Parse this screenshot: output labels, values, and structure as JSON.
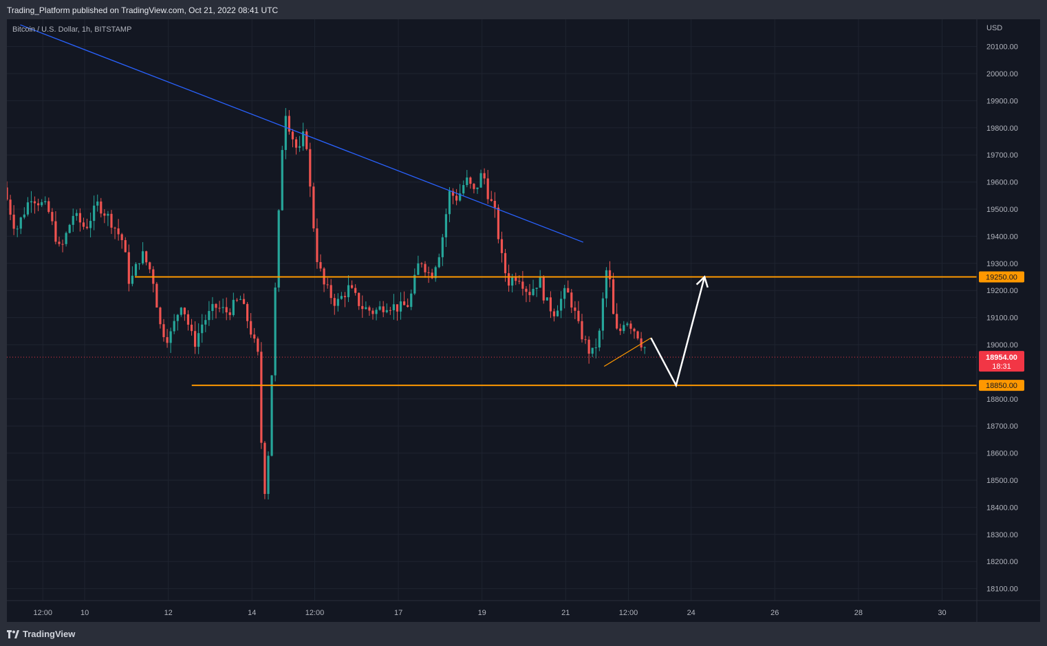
{
  "header": {
    "publisher_line": "Trading_Platform published on TradingView.com, Oct 21, 2022 08:41 UTC"
  },
  "footer": {
    "brand": "TradingView"
  },
  "colors": {
    "background": "#131722",
    "frame": "#2a2e39",
    "grid": "#1f2430",
    "up": "#26a69a",
    "down": "#ef5350",
    "trendline": "#2962ff",
    "level": "#ff9800",
    "projection": "#ffffff",
    "price_label": "#f23645",
    "axis_text": "#b2b5be"
  },
  "chart_data": {
    "type": "candlestick",
    "title": "Bitcoin / U.S. Dollar, 1h, BITSTAMP",
    "y_unit": "USD",
    "ylim": [
      18040,
      20180
    ],
    "y_ticks": [
      20100,
      20000,
      19900,
      19800,
      19700,
      19600,
      19500,
      19400,
      19300,
      19200,
      19100,
      19000,
      18800,
      18700,
      18600,
      18500,
      18400,
      18300,
      18200,
      18100
    ],
    "y_tick_labels": [
      "20100.00",
      "20000.00",
      "19900.00",
      "19800.00",
      "19700.00",
      "19600.00",
      "19500.00",
      "19400.00",
      "19300.00",
      "19200.00",
      "19100.00",
      "19000.00",
      "18800.00",
      "18700.00",
      "18600.00",
      "18500.00",
      "18400.00",
      "18300.00",
      "18200.00",
      "18100.00"
    ],
    "x_tick_labels": [
      "12:00",
      "10",
      "12",
      "14",
      "12:00",
      "17",
      "19",
      "21",
      "12:00",
      "24",
      "26",
      "28",
      "30"
    ],
    "x_tick_days": [
      9.0,
      9.5,
      10.5,
      11.5,
      12.25,
      13.25,
      14.25,
      15.25,
      16.0,
      16.75,
      17.75,
      18.75,
      19.75
    ],
    "x_domain": [
      8.57,
      20.4
    ],
    "price_path": [
      [
        8.57,
        19580
      ],
      [
        8.72,
        19420
      ],
      [
        8.9,
        19550
      ],
      [
        9.1,
        19500
      ],
      [
        9.25,
        19340
      ],
      [
        9.4,
        19480
      ],
      [
        9.55,
        19430
      ],
      [
        9.7,
        19520
      ],
      [
        9.85,
        19460
      ],
      [
        10.0,
        19380
      ],
      [
        10.08,
        19220
      ],
      [
        10.22,
        19340
      ],
      [
        10.35,
        19260
      ],
      [
        10.45,
        19060
      ],
      [
        10.55,
        19020
      ],
      [
        10.7,
        19160
      ],
      [
        10.85,
        19000
      ],
      [
        10.95,
        19080
      ],
      [
        11.1,
        19140
      ],
      [
        11.25,
        19120
      ],
      [
        11.4,
        19170
      ],
      [
        11.5,
        19080
      ],
      [
        11.62,
        18950
      ],
      [
        11.66,
        18580
      ],
      [
        11.71,
        18420
      ],
      [
        11.76,
        18760
      ],
      [
        11.82,
        19200
      ],
      [
        11.88,
        19600
      ],
      [
        11.93,
        19880
      ],
      [
        12.0,
        19790
      ],
      [
        12.1,
        19700
      ],
      [
        12.18,
        19800
      ],
      [
        12.25,
        19520
      ],
      [
        12.32,
        19320
      ],
      [
        12.4,
        19220
      ],
      [
        12.55,
        19150
      ],
      [
        12.7,
        19210
      ],
      [
        12.85,
        19140
      ],
      [
        13.0,
        19120
      ],
      [
        13.15,
        19150
      ],
      [
        13.3,
        19135
      ],
      [
        13.42,
        19150
      ],
      [
        13.55,
        19320
      ],
      [
        13.68,
        19250
      ],
      [
        13.8,
        19360
      ],
      [
        13.9,
        19560
      ],
      [
        14.0,
        19540
      ],
      [
        14.1,
        19610
      ],
      [
        14.2,
        19560
      ],
      [
        14.3,
        19640
      ],
      [
        14.36,
        19560
      ],
      [
        14.45,
        19480
      ],
      [
        14.52,
        19330
      ],
      [
        14.6,
        19230
      ],
      [
        14.72,
        19260
      ],
      [
        14.85,
        19190
      ],
      [
        14.98,
        19240
      ],
      [
        15.05,
        19160
      ],
      [
        15.15,
        19120
      ],
      [
        15.3,
        19200
      ],
      [
        15.38,
        19140
      ],
      [
        15.45,
        19060
      ],
      [
        15.55,
        18990
      ],
      [
        15.6,
        18960
      ],
      [
        15.67,
        19010
      ],
      [
        15.72,
        19070
      ],
      [
        15.76,
        19290
      ],
      [
        15.82,
        19230
      ],
      [
        15.87,
        19080
      ],
      [
        15.92,
        19030
      ],
      [
        16.0,
        19100
      ],
      [
        16.08,
        19070
      ],
      [
        16.15,
        19040
      ],
      [
        16.22,
        18990
      ]
    ],
    "annotations": {
      "trendline": [
        [
          8.73,
          20180
        ],
        [
          15.46,
          19378
        ]
      ],
      "levels": [
        {
          "price": 19250,
          "label": "19250.00",
          "from_day": 10.1
        },
        {
          "price": 18850,
          "label": "18850.00",
          "from_day": 10.78
        }
      ],
      "small_trendline": [
        [
          15.71,
          18920
        ],
        [
          16.27,
          19025
        ]
      ],
      "projection_path": [
        [
          16.27,
          19025
        ],
        [
          16.57,
          18850
        ],
        [
          16.91,
          19250
        ]
      ],
      "current_price": {
        "price": 18954,
        "label": "18954.00",
        "countdown": "18:31"
      }
    }
  }
}
